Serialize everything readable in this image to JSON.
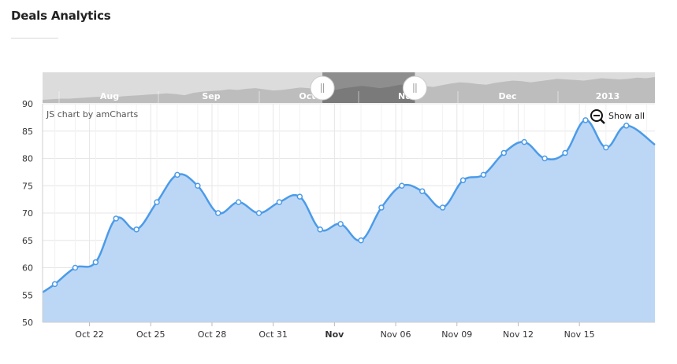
{
  "header": {
    "title": "Deals Analytics"
  },
  "chart_data": {
    "type": "area",
    "credit": "JS chart by amCharts",
    "show_all_label": "Show all",
    "ylim": [
      50,
      90
    ],
    "yticks": [
      50,
      55,
      60,
      65,
      70,
      75,
      80,
      85,
      90
    ],
    "x_start": -0.6,
    "x_end": 29.4,
    "values": [
      57,
      60,
      61,
      69,
      67,
      72,
      77,
      75,
      70,
      72,
      70,
      72,
      73,
      67,
      68,
      65,
      71,
      75,
      74,
      71,
      76,
      77,
      81,
      83,
      80,
      81,
      87,
      82,
      86
    ],
    "line_start": 55.5,
    "line_end": 82.5,
    "xticks": [
      {
        "label": "Oct 22",
        "index": 1.7,
        "bold": false
      },
      {
        "label": "Oct 25",
        "index": 4.7,
        "bold": false
      },
      {
        "label": "Oct 28",
        "index": 7.7,
        "bold": false
      },
      {
        "label": "Oct 31",
        "index": 10.7,
        "bold": false
      },
      {
        "label": "Nov",
        "index": 13.7,
        "bold": true
      },
      {
        "label": "Nov 06",
        "index": 16.7,
        "bold": false
      },
      {
        "label": "Nov 09",
        "index": 19.7,
        "bold": false
      },
      {
        "label": "Nov 12",
        "index": 22.7,
        "bold": false
      },
      {
        "label": "Nov 15",
        "index": 25.7,
        "bold": false
      }
    ],
    "scrollbar": {
      "labels": [
        "Aug",
        "Sep",
        "Oct",
        "Nov",
        "Dec",
        "2013"
      ],
      "overview": [
        50,
        51,
        52,
        52,
        53,
        54,
        55,
        55,
        54,
        56,
        57,
        58,
        59,
        60,
        61,
        60,
        58,
        62,
        64,
        65,
        66,
        68,
        67,
        69,
        70,
        68,
        66,
        67,
        69,
        71,
        70,
        68,
        65,
        67,
        70,
        72,
        74,
        72,
        70,
        72,
        75,
        77,
        76,
        74,
        72,
        75,
        78,
        80,
        79,
        77,
        76,
        79,
        81,
        83,
        82,
        80,
        82,
        84,
        86,
        85,
        84,
        83,
        85,
        87,
        86,
        85,
        86,
        88,
        87,
        89
      ],
      "selection": [
        0.457,
        0.608
      ]
    }
  },
  "colors": {
    "line": "#4c9be8",
    "fill": "#bcd7f5",
    "grid": "#e6e6e6"
  }
}
